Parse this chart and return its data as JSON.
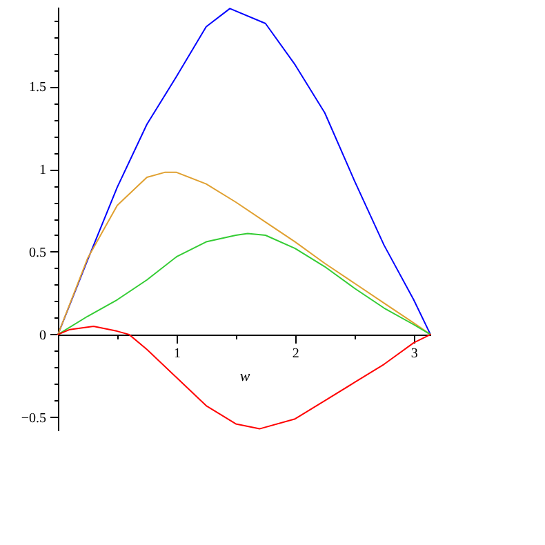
{
  "chart_data": {
    "type": "line",
    "xlabel": "w",
    "xlim": [
      0,
      3.1416
    ],
    "ylim": [
      -0.58,
      1.98
    ],
    "xticks": [
      {
        "value": 0.5,
        "label": null
      },
      1,
      {
        "value": 1.5,
        "label": null
      },
      2,
      {
        "value": 2.5,
        "label": null
      },
      3
    ],
    "yticks": [
      {
        "value": -0.5,
        "label": "−0.5"
      },
      {
        "value": -0.4,
        "label": null
      },
      {
        "value": -0.3,
        "label": null
      },
      {
        "value": -0.2,
        "label": null
      },
      {
        "value": -0.1,
        "label": null
      },
      0,
      {
        "value": 0.1,
        "label": null
      },
      {
        "value": 0.2,
        "label": null
      },
      {
        "value": 0.3,
        "label": null
      },
      {
        "value": 0.4,
        "label": null
      },
      0.5,
      {
        "value": 0.6,
        "label": null
      },
      {
        "value": 0.7,
        "label": null
      },
      {
        "value": 0.8,
        "label": null
      },
      {
        "value": 0.9,
        "label": null
      },
      1,
      {
        "value": 1.1,
        "label": null
      },
      {
        "value": 1.2,
        "label": null
      },
      {
        "value": 1.3,
        "label": null
      },
      {
        "value": 1.4,
        "label": null
      },
      1.5,
      {
        "value": 1.6,
        "label": null
      },
      {
        "value": 1.7,
        "label": null
      },
      {
        "value": 1.8,
        "label": null
      },
      {
        "value": 1.9,
        "label": null
      }
    ],
    "series": [
      {
        "color": "#0000ff",
        "x": [
          0,
          0.25,
          0.5,
          0.75,
          1,
          1.25,
          1.45,
          1.75,
          2,
          2.25,
          2.5,
          2.75,
          3,
          3.1416
        ],
        "values": [
          0,
          0.45,
          0.89,
          1.27,
          1.56,
          1.86,
          1.97,
          1.88,
          1.63,
          1.34,
          0.93,
          0.54,
          0.21,
          0
        ]
      },
      {
        "color": "#e0a030",
        "x": [
          0,
          0.25,
          0.5,
          0.75,
          0.9,
          1,
          1.25,
          1.5,
          1.75,
          2,
          2.25,
          2.5,
          2.75,
          3,
          3.1416
        ],
        "values": [
          0,
          0.46,
          0.78,
          0.95,
          0.98,
          0.98,
          0.91,
          0.8,
          0.68,
          0.56,
          0.43,
          0.31,
          0.19,
          0.07,
          0
        ]
      },
      {
        "color": "#33cc33",
        "x": [
          0,
          0.25,
          0.5,
          0.75,
          1,
          1.25,
          1.5,
          1.6,
          1.75,
          2,
          2.25,
          2.5,
          2.75,
          3,
          3.1416
        ],
        "values": [
          0,
          0.11,
          0.21,
          0.33,
          0.47,
          0.56,
          0.6,
          0.61,
          0.6,
          0.52,
          0.41,
          0.28,
          0.16,
          0.06,
          0
        ]
      },
      {
        "color": "#ff0000",
        "x": [
          0,
          0.1,
          0.3,
          0.5,
          0.6,
          0.75,
          1,
          1.25,
          1.5,
          1.7,
          2,
          2.25,
          2.5,
          2.75,
          3,
          3.1416
        ],
        "values": [
          0,
          0.03,
          0.05,
          0.02,
          0,
          -0.09,
          -0.26,
          -0.43,
          -0.54,
          -0.57,
          -0.51,
          -0.4,
          -0.29,
          -0.18,
          -0.05,
          0
        ]
      }
    ]
  }
}
